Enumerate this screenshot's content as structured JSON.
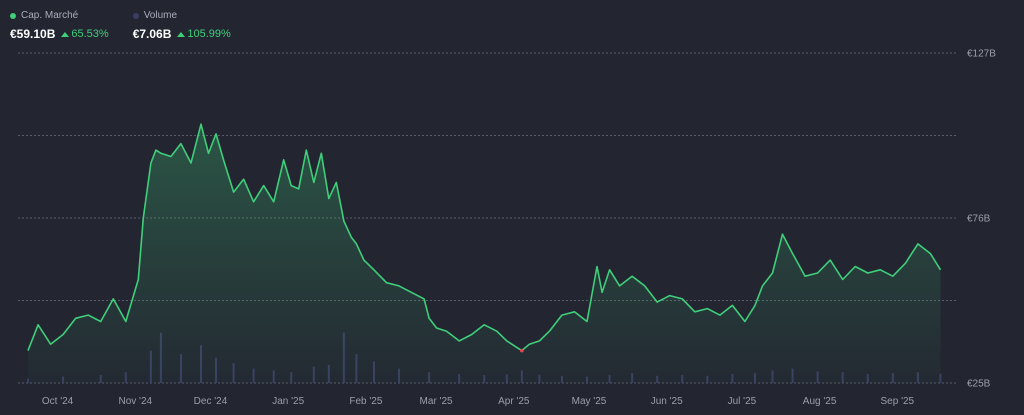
{
  "legend": {
    "market_cap": {
      "label": "Cap. Marché",
      "value": "€59.10B",
      "change": "65.53%",
      "color": "#3fcf7a"
    },
    "volume": {
      "label": "Volume",
      "value": "€7.06B",
      "change": "105.99%",
      "color": "#3a3f63"
    }
  },
  "chart_data": {
    "type": "area",
    "x_tick_labels": [
      "Oct '24",
      "Nov '24",
      "Dec '24",
      "Jan '25",
      "Feb '25",
      "Mar '25",
      "Apr '25",
      "May '25",
      "Jun '25",
      "Jul '25",
      "Aug '25",
      "Sep '25"
    ],
    "y_tick_labels": [
      "€127B",
      "€76B",
      "€25B"
    ],
    "y_ticks": [
      127,
      76,
      25
    ],
    "ylim": [
      25,
      127
    ],
    "grid": true,
    "series": [
      {
        "name": "Cap. Marché",
        "color": "#3fcf7a",
        "x": [
          "2024-09-24",
          "2024-09-28",
          "2024-10-03",
          "2024-10-08",
          "2024-10-13",
          "2024-10-18",
          "2024-10-23",
          "2024-10-28",
          "2024-11-02",
          "2024-11-07",
          "2024-11-09",
          "2024-11-12",
          "2024-11-14",
          "2024-11-16",
          "2024-11-20",
          "2024-11-24",
          "2024-11-28",
          "2024-12-02",
          "2024-12-05",
          "2024-12-08",
          "2024-12-11",
          "2024-12-15",
          "2024-12-19",
          "2024-12-23",
          "2024-12-27",
          "2024-12-31",
          "2025-01-04",
          "2025-01-07",
          "2025-01-10",
          "2025-01-13",
          "2025-01-16",
          "2025-01-19",
          "2025-01-22",
          "2025-01-25",
          "2025-01-28",
          "2025-01-31",
          "2025-02-02",
          "2025-02-05",
          "2025-02-09",
          "2025-02-14",
          "2025-02-19",
          "2025-02-24",
          "2025-03-01",
          "2025-03-03",
          "2025-03-06",
          "2025-03-10",
          "2025-03-15",
          "2025-03-20",
          "2025-03-25",
          "2025-03-30",
          "2025-04-03",
          "2025-04-07",
          "2025-04-09",
          "2025-04-12",
          "2025-04-16",
          "2025-04-20",
          "2025-04-25",
          "2025-04-30",
          "2025-05-05",
          "2025-05-09",
          "2025-05-11",
          "2025-05-14",
          "2025-05-18",
          "2025-05-23",
          "2025-05-28",
          "2025-06-02",
          "2025-06-07",
          "2025-06-12",
          "2025-06-17",
          "2025-06-22",
          "2025-06-27",
          "2025-07-02",
          "2025-07-07",
          "2025-07-11",
          "2025-07-14",
          "2025-07-18",
          "2025-07-22",
          "2025-07-26",
          "2025-07-31",
          "2025-08-05",
          "2025-08-10",
          "2025-08-15",
          "2025-08-20",
          "2025-08-25",
          "2025-08-30",
          "2025-09-04",
          "2025-09-09",
          "2025-09-14",
          "2025-09-19",
          "2025-09-23"
        ],
        "values": [
          35,
          43,
          37,
          40,
          45,
          46,
          44,
          51,
          44,
          57,
          76,
          93,
          97,
          96,
          95,
          99,
          93,
          105,
          96,
          102,
          94,
          84,
          88,
          81,
          86,
          81,
          94,
          86,
          85,
          97,
          87,
          96,
          82,
          87,
          75,
          70,
          68,
          63,
          60,
          56,
          55,
          53,
          51,
          45,
          42,
          41,
          38,
          40,
          43,
          41,
          38,
          36,
          35,
          37,
          38,
          41,
          46,
          47,
          44,
          61,
          53,
          60,
          55,
          58,
          55,
          50,
          52,
          51,
          47,
          48,
          46,
          49,
          44,
          49,
          55,
          59,
          71,
          65,
          58,
          59,
          63,
          57,
          61,
          59,
          60,
          58,
          62,
          68,
          65,
          60
        ],
        "min_point": {
          "x": "2025-04-09",
          "value": 35,
          "color": "#e5484d"
        }
      },
      {
        "name": "Volume",
        "color": "#3a3f63",
        "x": [
          "2024-09-24",
          "2024-10-08",
          "2024-10-23",
          "2024-11-02",
          "2024-11-12",
          "2024-11-16",
          "2024-11-24",
          "2024-12-02",
          "2024-12-08",
          "2024-12-15",
          "2024-12-23",
          "2024-12-31",
          "2025-01-07",
          "2025-01-16",
          "2025-01-22",
          "2025-01-28",
          "2025-02-02",
          "2025-02-09",
          "2025-02-19",
          "2025-03-03",
          "2025-03-15",
          "2025-03-25",
          "2025-04-03",
          "2025-04-09",
          "2025-04-16",
          "2025-04-25",
          "2025-05-05",
          "2025-05-14",
          "2025-05-23",
          "2025-06-02",
          "2025-06-12",
          "2025-06-22",
          "2025-07-02",
          "2025-07-11",
          "2025-07-18",
          "2025-07-26",
          "2025-08-05",
          "2025-08-15",
          "2025-08-25",
          "2025-09-04",
          "2025-09-14",
          "2025-09-23"
        ],
        "values": [
          1.2,
          1.8,
          2.2,
          3.0,
          9.0,
          14.0,
          8.0,
          10.5,
          7.0,
          5.5,
          4.0,
          3.5,
          3.0,
          4.5,
          5.0,
          14.0,
          8.0,
          6.0,
          4.0,
          3.0,
          2.5,
          2.2,
          2.4,
          3.5,
          2.3,
          2.0,
          1.8,
          2.2,
          2.8,
          2.0,
          2.2,
          2.0,
          2.5,
          2.8,
          3.5,
          4.0,
          3.2,
          3.0,
          2.5,
          2.8,
          3.0,
          2.6
        ],
        "ylim": [
          0,
          25
        ]
      }
    ]
  }
}
